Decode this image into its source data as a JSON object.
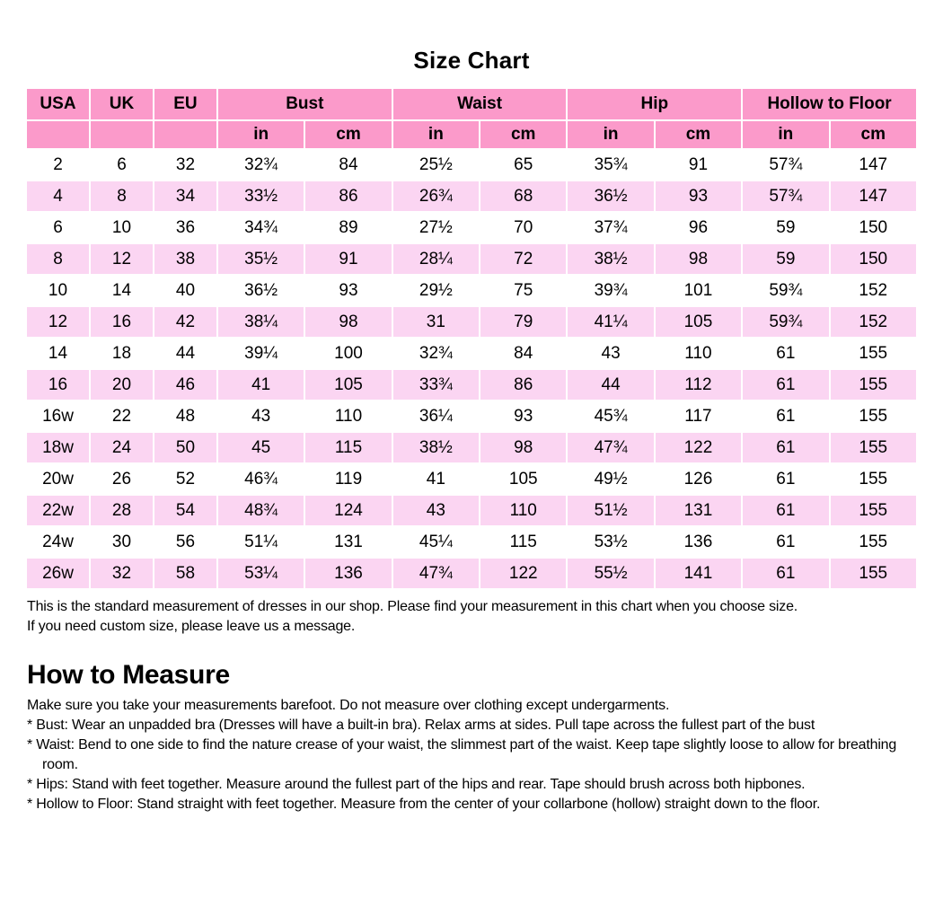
{
  "page_title": "Size Chart",
  "colors": {
    "header_pink": "#fb9aca",
    "row_pink": "#fbd5f2",
    "background": "#ffffff",
    "text": "#000000"
  },
  "size_table": {
    "group_headers": [
      {
        "label": "USA",
        "span": 1
      },
      {
        "label": "UK",
        "span": 1
      },
      {
        "label": "EU",
        "span": 1
      },
      {
        "label": "Bust",
        "span": 2
      },
      {
        "label": "Waist",
        "span": 2
      },
      {
        "label": "Hip",
        "span": 2
      },
      {
        "label": "Hollow to Floor",
        "span": 2
      }
    ],
    "unit_headers": [
      "",
      "",
      "",
      "in",
      "cm",
      "in",
      "cm",
      "in",
      "cm",
      "in",
      "cm"
    ],
    "rows": [
      [
        "2",
        "6",
        "32",
        "32¾",
        "84",
        "25½",
        "65",
        "35¾",
        "91",
        "57¾",
        "147"
      ],
      [
        "4",
        "8",
        "34",
        "33½",
        "86",
        "26¾",
        "68",
        "36½",
        "93",
        "57¾",
        "147"
      ],
      [
        "6",
        "10",
        "36",
        "34¾",
        "89",
        "27½",
        "70",
        "37¾",
        "96",
        "59",
        "150"
      ],
      [
        "8",
        "12",
        "38",
        "35½",
        "91",
        "28¼",
        "72",
        "38½",
        "98",
        "59",
        "150"
      ],
      [
        "10",
        "14",
        "40",
        "36½",
        "93",
        "29½",
        "75",
        "39¾",
        "101",
        "59¾",
        "152"
      ],
      [
        "12",
        "16",
        "42",
        "38¼",
        "98",
        "31",
        "79",
        "41¼",
        "105",
        "59¾",
        "152"
      ],
      [
        "14",
        "18",
        "44",
        "39¼",
        "100",
        "32¾",
        "84",
        "43",
        "110",
        "61",
        "155"
      ],
      [
        "16",
        "20",
        "46",
        "41",
        "105",
        "33¾",
        "86",
        "44",
        "112",
        "61",
        "155"
      ],
      [
        "16w",
        "22",
        "48",
        "43",
        "110",
        "36¼",
        "93",
        "45¾",
        "117",
        "61",
        "155"
      ],
      [
        "18w",
        "24",
        "50",
        "45",
        "115",
        "38½",
        "98",
        "47¾",
        "122",
        "61",
        "155"
      ],
      [
        "20w",
        "26",
        "52",
        "46¾",
        "119",
        "41",
        "105",
        "49½",
        "126",
        "61",
        "155"
      ],
      [
        "22w",
        "28",
        "54",
        "48¾",
        "124",
        "43",
        "110",
        "51½",
        "131",
        "61",
        "155"
      ],
      [
        "24w",
        "30",
        "56",
        "51¼",
        "131",
        "45¼",
        "115",
        "53½",
        "136",
        "61",
        "155"
      ],
      [
        "26w",
        "32",
        "58",
        "53¼",
        "136",
        "47¾",
        "122",
        "55½",
        "141",
        "61",
        "155"
      ]
    ]
  },
  "notes": [
    "This is the standard measurement of dresses in our shop. Please find your measurement in this chart when you choose size.",
    "If you need custom size, please leave us a message."
  ],
  "how_to_measure": {
    "heading": "How to Measure",
    "intro": "Make sure you take your measurements barefoot. Do not measure over clothing except undergarments.",
    "items": [
      "* Bust: Wear an unpadded bra (Dresses will have a built-in bra). Relax arms at sides. Pull tape across the fullest part of the bust",
      "* Waist: Bend to one side to find the nature crease of your waist, the slimmest part of the waist. Keep tape slightly loose to allow for breathing room.",
      "* Hips: Stand with feet together. Measure around the fullest part of the hips and rear. Tape should brush across both hipbones.",
      "* Hollow to Floor: Stand straight with feet together. Measure from the center of your collarbone (hollow) straight down to the floor."
    ]
  }
}
